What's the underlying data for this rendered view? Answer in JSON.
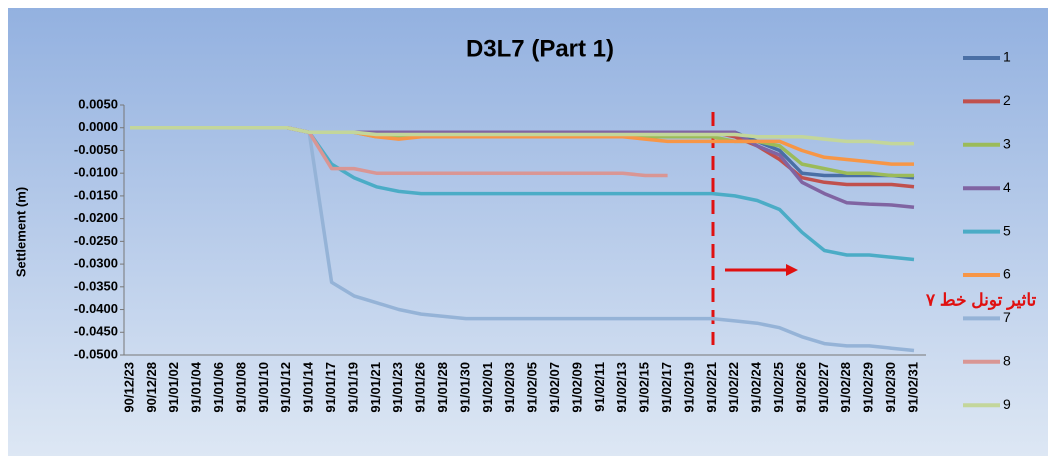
{
  "chart_data": {
    "type": "line",
    "title": "D3L7 (Part 1)",
    "y_label": "Settlement (m)",
    "annotation": "تاثیر تونل خط ۷",
    "categories": [
      "90/12/23",
      "90/12/28",
      "91/01/02",
      "91/01/04",
      "91/01/06",
      "91/01/08",
      "91/01/10",
      "91/01/12",
      "91/01/14",
      "91/01/17",
      "91/01/19",
      "91/01/21",
      "91/01/23",
      "91/01/26",
      "91/01/28",
      "91/01/30",
      "91/02/01",
      "91/02/03",
      "91/02/05",
      "91/02/07",
      "91/02/09",
      "91/02/11",
      "91/02/13",
      "91/02/15",
      "91/02/17",
      "91/02/19",
      "91/02/21",
      "91/02/22",
      "91/02/24",
      "91/02/25",
      "91/02/26",
      "91/02/27",
      "91/02/28",
      "91/02/29",
      "91/02/30",
      "91/02/31"
    ],
    "series": [
      {
        "name": "1",
        "color": "#4a6fa5",
        "values": [
          0,
          0,
          0,
          0,
          0,
          0,
          0,
          0,
          -0.001,
          -0.001,
          -0.001,
          -0.001,
          -0.001,
          -0.001,
          -0.001,
          -0.001,
          -0.001,
          -0.001,
          -0.001,
          -0.001,
          -0.001,
          -0.001,
          -0.001,
          -0.001,
          -0.001,
          -0.001,
          -0.001,
          -0.001,
          -0.003,
          -0.005,
          -0.01,
          -0.0105,
          -0.0105,
          -0.0105,
          -0.0105,
          -0.011
        ]
      },
      {
        "name": "2",
        "color": "#c0504d",
        "values": [
          0,
          0,
          0,
          0,
          0,
          0,
          0,
          0,
          -0.001,
          -0.001,
          -0.001,
          -0.001,
          -0.001,
          -0.001,
          -0.001,
          -0.001,
          -0.001,
          -0.001,
          -0.001,
          -0.001,
          -0.001,
          -0.001,
          -0.001,
          -0.001,
          -0.001,
          -0.001,
          -0.001,
          -0.002,
          -0.004,
          -0.007,
          -0.011,
          -0.012,
          -0.0125,
          -0.0125,
          -0.0125,
          -0.013
        ]
      },
      {
        "name": "3",
        "color": "#9bbb59",
        "values": [
          0,
          0,
          0,
          0,
          0,
          0,
          0,
          0,
          -0.001,
          -0.001,
          -0.001,
          -0.002,
          -0.002,
          -0.002,
          -0.002,
          -0.002,
          -0.002,
          -0.002,
          -0.002,
          -0.002,
          -0.002,
          -0.002,
          -0.002,
          -0.002,
          -0.002,
          -0.002,
          -0.002,
          -0.003,
          -0.003,
          -0.004,
          -0.008,
          -0.009,
          -0.01,
          -0.01,
          -0.0105,
          -0.0105
        ]
      },
      {
        "name": "4",
        "color": "#8064a2",
        "values": [
          0,
          0,
          0,
          0,
          0,
          0,
          0,
          0,
          -0.001,
          -0.001,
          -0.001,
          -0.001,
          -0.001,
          -0.001,
          -0.001,
          -0.001,
          -0.001,
          -0.001,
          -0.001,
          -0.001,
          -0.001,
          -0.001,
          -0.001,
          -0.001,
          -0.001,
          -0.001,
          -0.001,
          -0.001,
          -0.004,
          -0.006,
          -0.012,
          -0.0145,
          -0.0165,
          -0.0168,
          -0.017,
          -0.0175
        ]
      },
      {
        "name": "5",
        "color": "#4bacc6",
        "values": [
          0,
          0,
          0,
          0,
          0,
          0,
          0,
          0,
          -0.001,
          -0.008,
          -0.011,
          -0.013,
          -0.014,
          -0.0145,
          -0.0145,
          -0.0145,
          -0.0145,
          -0.0145,
          -0.0145,
          -0.0145,
          -0.0145,
          -0.0145,
          -0.0145,
          -0.0145,
          -0.0145,
          -0.0145,
          -0.0145,
          -0.015,
          -0.016,
          -0.018,
          -0.023,
          -0.027,
          -0.028,
          -0.028,
          -0.0285,
          -0.029
        ]
      },
      {
        "name": "6",
        "color": "#f79646",
        "values": [
          0,
          0,
          0,
          0,
          0,
          0,
          0,
          0,
          -0.001,
          -0.001,
          -0.001,
          -0.002,
          -0.0025,
          -0.002,
          -0.002,
          -0.002,
          -0.002,
          -0.002,
          -0.002,
          -0.002,
          -0.002,
          -0.002,
          -0.002,
          -0.0025,
          -0.003,
          -0.003,
          -0.003,
          -0.003,
          -0.003,
          -0.003,
          -0.005,
          -0.0065,
          -0.007,
          -0.0075,
          -0.008,
          -0.008
        ]
      },
      {
        "name": "7",
        "color": "#95b3d7",
        "values": [
          0,
          0,
          0,
          0,
          0,
          0,
          0,
          0,
          -0.001,
          -0.034,
          -0.037,
          -0.0385,
          -0.04,
          -0.041,
          -0.0415,
          -0.042,
          -0.042,
          -0.042,
          -0.042,
          -0.042,
          -0.042,
          -0.042,
          -0.042,
          -0.042,
          -0.042,
          -0.042,
          -0.042,
          -0.0425,
          -0.043,
          -0.044,
          -0.046,
          -0.0475,
          -0.048,
          -0.048,
          -0.0485,
          -0.049
        ]
      },
      {
        "name": "8",
        "color": "#d99694",
        "values": [
          0,
          0,
          0,
          0,
          0,
          0,
          0,
          0,
          -0.001,
          -0.009,
          -0.009,
          -0.01,
          -0.01,
          -0.01,
          -0.01,
          -0.01,
          -0.01,
          -0.01,
          -0.01,
          -0.01,
          -0.01,
          -0.01,
          -0.01,
          -0.0105,
          -0.0105,
          null,
          null,
          null,
          null,
          null,
          null,
          null,
          null,
          null,
          null,
          null
        ]
      },
      {
        "name": "9",
        "color": "#c3d69b",
        "values": [
          0,
          0,
          0,
          0,
          0,
          0,
          0,
          0,
          -0.001,
          -0.001,
          -0.001,
          -0.0015,
          -0.0015,
          -0.0015,
          -0.0015,
          -0.0015,
          -0.0015,
          -0.0015,
          -0.0015,
          -0.0015,
          -0.0015,
          -0.0015,
          -0.0015,
          -0.0015,
          -0.0015,
          -0.0015,
          -0.0015,
          -0.0015,
          -0.002,
          -0.002,
          -0.002,
          -0.0025,
          -0.003,
          -0.003,
          -0.0035,
          -0.0035
        ]
      }
    ],
    "ylim": [
      -0.05,
      0.005
    ],
    "yticks": [
      {
        "value": 0.005,
        "label": "0.0050"
      },
      {
        "value": 0,
        "label": "0.0000"
      },
      {
        "value": -0.005,
        "label": "-0.0050"
      },
      {
        "value": -0.01,
        "label": "-0.0100"
      },
      {
        "value": -0.015,
        "label": "-0.0150"
      },
      {
        "value": -0.02,
        "label": "-0.0200"
      },
      {
        "value": -0.025,
        "label": "-0.0250"
      },
      {
        "value": -0.03,
        "label": "-0.0300"
      },
      {
        "value": -0.035,
        "label": "-0.0350"
      },
      {
        "value": -0.04,
        "label": "-0.0400"
      },
      {
        "value": -0.045,
        "label": "-0.0450"
      },
      {
        "value": -0.05,
        "label": "-0.0500"
      }
    ],
    "legend": "right"
  }
}
